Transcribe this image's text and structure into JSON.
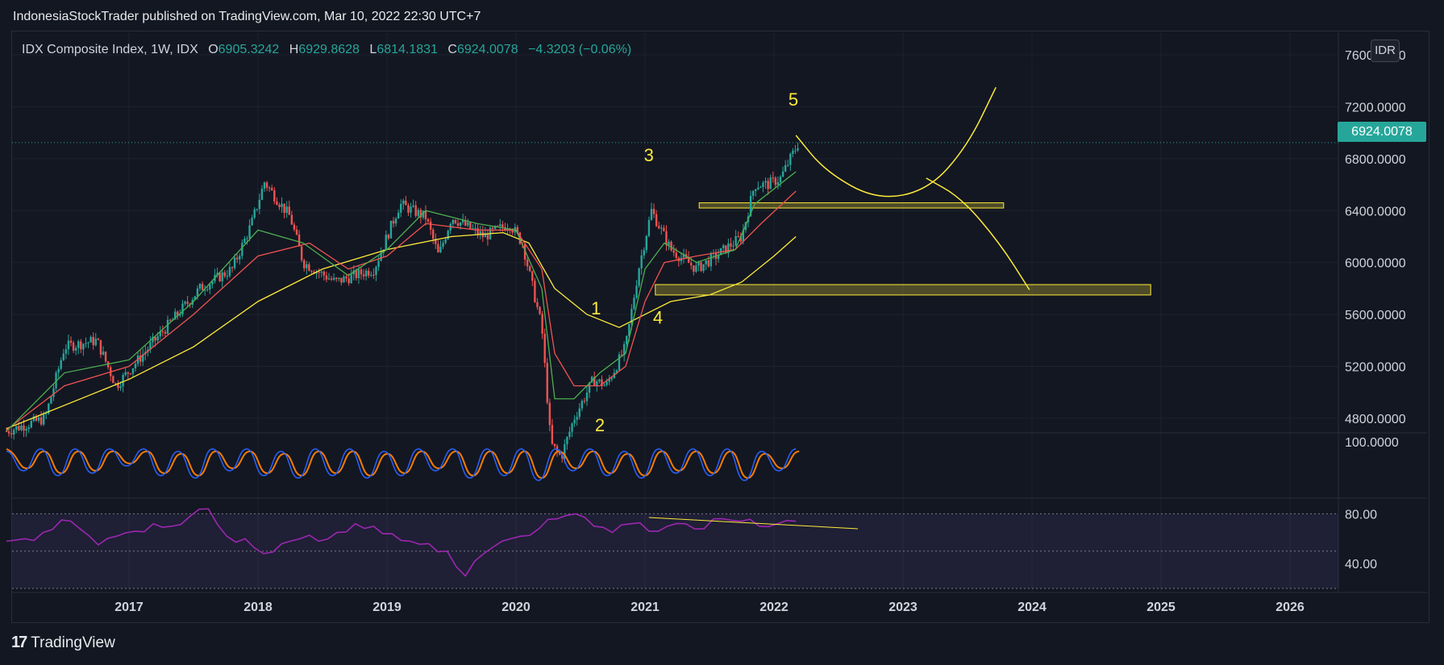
{
  "header": {
    "published": "IndonesiaStockTrader published on TradingView.com, Mar 10, 2022 22:30 UTC+7"
  },
  "legend": {
    "symbol": "IDX Composite Index, 1W, IDX",
    "o_label": "O",
    "o": "6905.3242",
    "h_label": "H",
    "h": "6929.8628",
    "l_label": "L",
    "l": "6814.1831",
    "c_label": "C",
    "c": "6924.0078",
    "change": "−4.3203 (−0.06%)"
  },
  "currency": "IDR",
  "last_price": "6924.0078",
  "branding": {
    "logo_text": "TradingView"
  },
  "colors": {
    "up": "#26a69a",
    "down": "#ef5350",
    "ma_yellow": "#ffeb3b",
    "ma_red": "#ef5350",
    "ma_green": "#4caf50",
    "stoch_k": "#2962ff",
    "stoch_d": "#f57c00",
    "rsi": "#9c27b0",
    "annotation": "#ffeb3b"
  },
  "chart_data": [
    {
      "type": "candlestick",
      "title": "IDX Composite Index, 1W, IDX",
      "x_ticks": [
        "2017",
        "2018",
        "2019",
        "2020",
        "2021",
        "2022",
        "2023",
        "2024",
        "2025",
        "2026"
      ],
      "y_ticks": [
        "7600.0000",
        "7200.0000",
        "6800.0000",
        "6400.0000",
        "6000.0000",
        "5600.0000",
        "5200.0000",
        "4800.0000"
      ],
      "ylim": [
        4700,
        7650
      ],
      "close_path": [
        [
          2016.05,
          4700
        ],
        [
          2016.35,
          4800
        ],
        [
          2016.5,
          5350
        ],
        [
          2016.75,
          5400
        ],
        [
          2016.9,
          5050
        ],
        [
          2017.2,
          5400
        ],
        [
          2017.55,
          5800
        ],
        [
          2017.8,
          5950
        ],
        [
          2017.95,
          6300
        ],
        [
          2018.05,
          6620
        ],
        [
          2018.25,
          6350
        ],
        [
          2018.35,
          6000
        ],
        [
          2018.6,
          5850
        ],
        [
          2018.75,
          5900
        ],
        [
          2018.9,
          5950
        ],
        [
          2019.1,
          6450
        ],
        [
          2019.3,
          6350
        ],
        [
          2019.4,
          6050
        ],
        [
          2019.5,
          6350
        ],
        [
          2019.75,
          6200
        ],
        [
          2019.95,
          6300
        ],
        [
          2020.05,
          6150
        ],
        [
          2020.2,
          5500
        ],
        [
          2020.27,
          4600
        ],
        [
          2020.35,
          4500
        ],
        [
          2020.45,
          4800
        ],
        [
          2020.6,
          5100
        ],
        [
          2020.7,
          5050
        ],
        [
          2020.85,
          5350
        ],
        [
          2020.95,
          5950
        ],
        [
          2021.05,
          6400
        ],
        [
          2021.2,
          6100
        ],
        [
          2021.4,
          5950
        ],
        [
          2021.55,
          6050
        ],
        [
          2021.75,
          6200
        ],
        [
          2021.85,
          6600
        ],
        [
          2021.95,
          6600
        ],
        [
          2022.05,
          6650
        ],
        [
          2022.19,
          6924
        ]
      ],
      "moving_averages": [
        {
          "color": "yellow",
          "points": [
            [
              2016.05,
              4720
            ],
            [
              2016.5,
              4900
            ],
            [
              2017.0,
              5100
            ],
            [
              2017.5,
              5350
            ],
            [
              2018.0,
              5700
            ],
            [
              2018.5,
              5950
            ],
            [
              2019.0,
              6100
            ],
            [
              2019.5,
              6200
            ],
            [
              2019.9,
              6230
            ],
            [
              2020.1,
              6150
            ],
            [
              2020.3,
              5800
            ],
            [
              2020.55,
              5600
            ],
            [
              2020.8,
              5500
            ],
            [
              2021.0,
              5600
            ],
            [
              2021.2,
              5700
            ],
            [
              2021.5,
              5750
            ],
            [
              2021.75,
              5850
            ],
            [
              2022.0,
              6050
            ],
            [
              2022.17,
              6200
            ]
          ]
        },
        {
          "color": "red",
          "points": [
            [
              2016.05,
              4710
            ],
            [
              2016.5,
              5050
            ],
            [
              2017.0,
              5200
            ],
            [
              2017.5,
              5600
            ],
            [
              2018.0,
              6050
            ],
            [
              2018.4,
              6150
            ],
            [
              2018.7,
              5950
            ],
            [
              2019.0,
              6050
            ],
            [
              2019.3,
              6300
            ],
            [
              2019.7,
              6250
            ],
            [
              2020.0,
              6250
            ],
            [
              2020.2,
              5950
            ],
            [
              2020.3,
              5300
            ],
            [
              2020.45,
              5050
            ],
            [
              2020.65,
              5050
            ],
            [
              2020.85,
              5200
            ],
            [
              2021.0,
              5700
            ],
            [
              2021.15,
              6000
            ],
            [
              2021.4,
              6050
            ],
            [
              2021.7,
              6100
            ],
            [
              2021.9,
              6300
            ],
            [
              2022.17,
              6550
            ]
          ]
        },
        {
          "color": "green",
          "points": [
            [
              2016.05,
              4700
            ],
            [
              2016.5,
              5150
            ],
            [
              2017.0,
              5250
            ],
            [
              2017.5,
              5700
            ],
            [
              2018.0,
              6250
            ],
            [
              2018.35,
              6150
            ],
            [
              2018.7,
              5900
            ],
            [
              2019.0,
              6100
            ],
            [
              2019.3,
              6400
            ],
            [
              2019.7,
              6300
            ],
            [
              2020.0,
              6250
            ],
            [
              2020.2,
              5800
            ],
            [
              2020.3,
              4950
            ],
            [
              2020.45,
              4950
            ],
            [
              2020.65,
              5150
            ],
            [
              2020.85,
              5300
            ],
            [
              2021.0,
              5950
            ],
            [
              2021.15,
              6150
            ],
            [
              2021.4,
              6000
            ],
            [
              2021.7,
              6100
            ],
            [
              2021.85,
              6450
            ],
            [
              2022.17,
              6700
            ]
          ]
        }
      ],
      "wave_labels": [
        {
          "label": "1",
          "x": 2020.62,
          "y": 5600
        },
        {
          "label": "2",
          "x": 2020.65,
          "y": 4700
        },
        {
          "label": "3",
          "x": 2021.03,
          "y": 6780
        },
        {
          "label": "4",
          "x": 2021.1,
          "y": 5530
        },
        {
          "label": "5",
          "x": 2022.15,
          "y": 7210
        }
      ],
      "zones": [
        {
          "x1": 2021.42,
          "x2": 2023.78,
          "y1": 6420,
          "y2": 6460
        },
        {
          "x1": 2021.08,
          "x2": 2024.92,
          "y1": 5750,
          "y2": 5830
        }
      ],
      "projections": [
        {
          "points": [
            [
              2022.17,
              6980
            ],
            [
              2022.4,
              6700
            ],
            [
              2022.8,
              6480
            ],
            [
              2023.2,
              6560
            ],
            [
              2023.5,
              6900
            ],
            [
              2023.72,
              7350
            ]
          ]
        },
        {
          "points": [
            [
              2023.18,
              6650
            ],
            [
              2023.45,
              6500
            ],
            [
              2023.75,
              6150
            ],
            [
              2023.98,
              5790
            ]
          ]
        }
      ]
    },
    {
      "type": "line",
      "title": "",
      "y_ticks": [
        "100.0000"
      ],
      "ylim": [
        0,
        100
      ],
      "series": [
        {
          "values": [
            80,
            40,
            85,
            30,
            85,
            35,
            85,
            50,
            85,
            30,
            80,
            25,
            85,
            40,
            85,
            30,
            80,
            25,
            85,
            30,
            85,
            25,
            80,
            30,
            85,
            40,
            85,
            25,
            85,
            30,
            85,
            20,
            85,
            40,
            85,
            30,
            80,
            25,
            85,
            35,
            85,
            30,
            85,
            20,
            80,
            40,
            85
          ]
        }
      ]
    },
    {
      "type": "line",
      "title": "",
      "y_ticks": [
        "80.00",
        "40.00"
      ],
      "ylim": [
        20,
        90
      ],
      "series": [
        {
          "values": [
            58,
            60,
            65,
            75,
            68,
            55,
            62,
            66,
            72,
            70,
            78,
            84,
            62,
            60,
            48,
            56,
            60,
            58,
            65,
            72,
            70,
            64,
            58,
            56,
            50,
            30,
            48,
            58,
            62,
            68,
            76,
            80,
            70,
            65,
            72,
            66,
            70,
            72,
            68,
            76,
            74,
            70,
            72,
            74
          ]
        }
      ],
      "annotation": {
        "from": [
          2021.03,
          77
        ],
        "to": [
          2022.65,
          68
        ]
      }
    }
  ]
}
